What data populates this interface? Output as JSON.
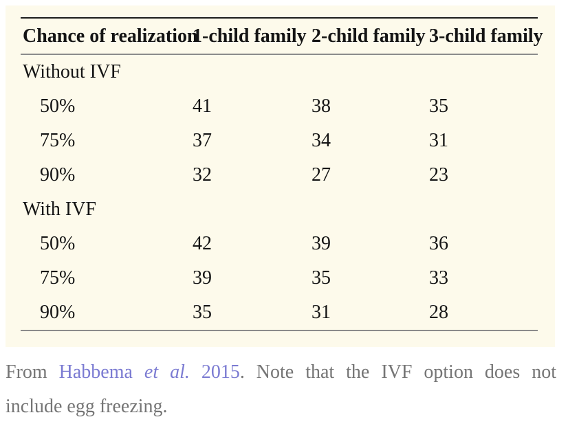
{
  "colors": {
    "panel_background": "#FDFAEB",
    "rule_dark": "#1c1c1c",
    "rule_gray": "#8b8b8b",
    "table_text": "#141414",
    "caption_text": "#757575",
    "link_color": "#7B7BD2"
  },
  "table": {
    "headers": [
      "Chance of realization",
      "1-child family",
      "2-child family",
      "3-child family"
    ],
    "sections": [
      {
        "label": "Without IVF",
        "rows": [
          {
            "chance": "50%",
            "values": [
              "41",
              "38",
              "35"
            ]
          },
          {
            "chance": "75%",
            "values": [
              "37",
              "34",
              "31"
            ]
          },
          {
            "chance": "90%",
            "values": [
              "32",
              "27",
              "23"
            ]
          }
        ]
      },
      {
        "label": "With IVF",
        "rows": [
          {
            "chance": "50%",
            "values": [
              "42",
              "39",
              "36"
            ]
          },
          {
            "chance": "75%",
            "values": [
              "39",
              "35",
              "33"
            ]
          },
          {
            "chance": "90%",
            "values": [
              "35",
              "31",
              "28"
            ]
          }
        ]
      }
    ]
  },
  "caption": {
    "prefix": "From",
    "link": {
      "pre_italic": "Habbema",
      "italic": "et al.",
      "post_italic": "2015"
    },
    "suffix_line1": ". Note that the IVF option does not",
    "line2": "include egg freezing."
  }
}
